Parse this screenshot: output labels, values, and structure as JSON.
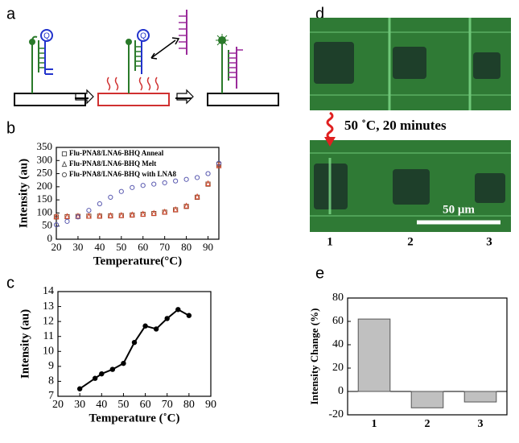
{
  "panel_labels": [
    "a",
    "b",
    "c",
    "d",
    "e"
  ],
  "diagram": {
    "quencher": "Q"
  },
  "micrograph": {
    "annotation": "50 ˚C, 20 minutes",
    "scale_bar": "50 μm",
    "lanes": [
      "1",
      "2",
      "3"
    ]
  },
  "chart_data": [
    {
      "type": "scatter",
      "xlabel": "Temperature(°C)",
      "ylabel": "Intensity (au)",
      "x": [
        20,
        25,
        30,
        35,
        40,
        45,
        50,
        55,
        60,
        65,
        70,
        75,
        80,
        85,
        90,
        95
      ],
      "series": [
        {
          "name": "Flu-PNA8/LNA6-BHQ Anneal",
          "color": "#8b4a2a",
          "marker": "square",
          "values": [
            85,
            86,
            87,
            88,
            88,
            89,
            90,
            92,
            95,
            98,
            103,
            112,
            125,
            160,
            210,
            285
          ]
        },
        {
          "name": "Flu-PNA8/LNA6-BHQ Melt",
          "color": "#d0442a",
          "marker": "triangle",
          "values": [
            86,
            87,
            88,
            88,
            89,
            90,
            91,
            93,
            96,
            99,
            104,
            113,
            127,
            162,
            212,
            280
          ]
        },
        {
          "name": "Flu-PNA8/LNA6-BHQ with LNA8",
          "color": "#5a5ab0",
          "marker": "circle",
          "values": [
            55,
            68,
            85,
            110,
            135,
            160,
            182,
            197,
            205,
            210,
            215,
            222,
            228,
            235,
            250,
            290
          ]
        }
      ],
      "xlim": [
        20,
        95
      ],
      "xticks": [
        20,
        30,
        40,
        50,
        60,
        70,
        80,
        90
      ],
      "ylim": [
        0,
        350
      ],
      "yticks": [
        0,
        50,
        100,
        150,
        200,
        250,
        300,
        350
      ],
      "legend": "upper-left"
    },
    {
      "type": "line",
      "xlabel": "Temperature (˚C)",
      "ylabel": "Intensity (au)",
      "color": "#000000",
      "x": [
        30,
        37,
        40,
        45,
        50,
        55,
        60,
        65,
        70,
        75,
        80
      ],
      "values": [
        7.5,
        8.2,
        8.5,
        8.8,
        9.2,
        10.6,
        11.7,
        11.5,
        12.2,
        12.8,
        12.4
      ],
      "xlim": [
        20,
        90
      ],
      "xticks": [
        20,
        30,
        40,
        50,
        60,
        70,
        80,
        90
      ],
      "ylim": [
        7,
        14
      ],
      "yticks": [
        7,
        8,
        9,
        10,
        11,
        12,
        13,
        14
      ]
    },
    {
      "type": "bar",
      "ylabel": "Intensity Change (%)",
      "color": "#c0c0c0",
      "categories": [
        "1",
        "2",
        "3"
      ],
      "values": [
        62,
        -14,
        -9
      ],
      "ylim": [
        -20,
        80
      ],
      "yticks": [
        -20,
        0,
        20,
        40,
        60,
        80
      ]
    }
  ]
}
